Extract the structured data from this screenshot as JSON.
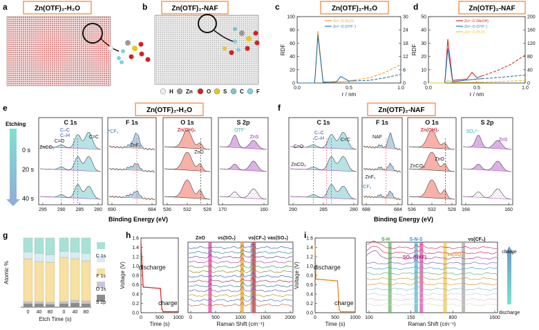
{
  "panels": {
    "a": {
      "letter": "a",
      "title": "Zn(OTF)₂-H₂O"
    },
    "b": {
      "letter": "b",
      "title": "Zn(OTF)₂-NAF"
    },
    "c": {
      "letter": "c",
      "title": "Zn(OTF)₂-H₂O"
    },
    "d": {
      "letter": "d",
      "title": "Zn(OTF)₂-NAF"
    },
    "e": {
      "letter": "e",
      "title": "Zn(OTF)₂-H₂O"
    },
    "f": {
      "letter": "f",
      "title": "Zn(OTF)₂-NAF"
    },
    "g": {
      "letter": "g"
    },
    "h": {
      "letter": "h"
    },
    "i": {
      "letter": "i"
    }
  },
  "atom_legend": [
    {
      "symbol": "H",
      "color": "#eeeeee"
    },
    {
      "symbol": "Zn",
      "color": "#9a9a9a"
    },
    {
      "symbol": "O",
      "color": "#d62020"
    },
    {
      "symbol": "S",
      "color": "#e6c820"
    },
    {
      "symbol": "C",
      "color": "#7fc4c8"
    },
    {
      "symbol": "F",
      "color": "#7fd0e0"
    }
  ],
  "chart_data": [
    {
      "id": "c",
      "type": "line",
      "title": "Zn(OTF)₂-H₂O",
      "xlabel": "r / nm",
      "ylabel": "RDF",
      "xlim": [
        0,
        1.0
      ],
      "ylim_left": [
        0,
        100
      ],
      "ylim_right": [
        0,
        30
      ],
      "x_ticks": [
        "0.0",
        "0.5",
        "1.0"
      ],
      "y_ticks_left": [
        "0",
        "20",
        "40",
        "60",
        "80",
        "100"
      ],
      "y_ticks_right": [
        "0",
        "6",
        "12",
        "18",
        "24",
        "30"
      ],
      "series": [
        {
          "name": "Zn²⁺-O (H₂O)",
          "color": "#f0a020",
          "x": [
            0,
            0.17,
            0.2,
            0.25,
            0.35,
            0.5,
            0.7,
            0.85,
            1.0
          ],
          "y": [
            0,
            0,
            78,
            2,
            1,
            3,
            8,
            16,
            28
          ]
        },
        {
          "name": "Zn²⁺-O (OTF⁻)",
          "color": "#1f77b4",
          "x": [
            0,
            0.17,
            0.2,
            0.25,
            0.38,
            0.42,
            0.5,
            0.7,
            0.85,
            1.0
          ],
          "y": [
            0,
            0,
            72,
            1,
            2,
            10,
            3,
            4,
            8,
            13
          ]
        }
      ]
    },
    {
      "id": "d",
      "type": "line",
      "title": "Zn(OTF)₂-NAF",
      "xlabel": "r / nm",
      "ylabel": "RDF",
      "xlim": [
        0,
        1.0
      ],
      "ylim_left": [
        0,
        50
      ],
      "ylim_right": [
        0,
        200
      ],
      "x_ticks": [
        "0.0",
        "0.5",
        "1.0"
      ],
      "y_ticks_left": [
        "0",
        "10",
        "20",
        "30",
        "40",
        "50"
      ],
      "y_ticks_right": [
        "0",
        "40",
        "80",
        "120",
        "160",
        "200"
      ],
      "series": [
        {
          "name": "Zn²⁺-O (MeOH)",
          "color": "#d62728",
          "x": [
            0,
            0.17,
            0.2,
            0.25,
            0.4,
            0.45,
            0.5,
            0.7,
            0.85,
            1.0
          ],
          "y": [
            0,
            0,
            33,
            2,
            3,
            8,
            4,
            9,
            14,
            21
          ]
        },
        {
          "name": "Zn²⁺-O (OTF⁻)",
          "color": "#1f77b4",
          "x": [
            0,
            0.17,
            0.2,
            0.25,
            0.5,
            0.7,
            0.85,
            1.0
          ],
          "y": [
            0,
            0,
            26,
            1,
            3,
            4,
            5,
            6
          ]
        },
        {
          "name": "Zn²⁺-O (H₂O)",
          "color": "#f0c020",
          "x": [
            0,
            0.17,
            0.2,
            0.25,
            0.5,
            0.7,
            1.0
          ],
          "y": [
            0,
            0,
            2,
            0.5,
            0.5,
            1,
            2
          ]
        }
      ]
    },
    {
      "id": "g",
      "type": "bar",
      "ylabel": "Atomic %",
      "xlabel": "Etch Time (s)",
      "groups": [
        {
          "name": "Zn(OTF)₂-H₂O",
          "categories": [
            "0",
            "40",
            "80"
          ]
        },
        {
          "name": "Zn(OTF)₂-NAF",
          "categories": [
            "0",
            "40",
            "80"
          ]
        }
      ],
      "legend": [
        "C 1s",
        "F 1s",
        "O 1s",
        "S 2p"
      ],
      "series": [
        {
          "name": "S 2p",
          "color": "#8c8c8c",
          "values": [
            5,
            5,
            4,
            5,
            6,
            5
          ]
        },
        {
          "name": "O 1s",
          "color": "#c8c8d4",
          "values": [
            3,
            3,
            3,
            3,
            4,
            4
          ]
        },
        {
          "name": "F 1s",
          "color": "#f7e0a0",
          "values": [
            62,
            58,
            58,
            64,
            60,
            58
          ]
        },
        {
          "name": "",
          "color": "#d8ecf2",
          "values": [
            10,
            12,
            11,
            9,
            10,
            11
          ]
        },
        {
          "name": "C 1s",
          "color": "#a6e3d6",
          "values": [
            20,
            22,
            24,
            19,
            20,
            22
          ]
        }
      ]
    },
    {
      "id": "h_voltage",
      "type": "line",
      "xlabel": "Time (s)",
      "ylabel": "Voltage (V)",
      "xlim": [
        0,
        1000
      ],
      "ylim": [
        0,
        1.6
      ],
      "x_ticks": [
        "0",
        "500",
        "1000"
      ],
      "y_ticks": [
        "0.0",
        "0.2",
        "0.4",
        "0.6",
        "0.8",
        "1.0",
        "1.2",
        "1.4",
        "1.6"
      ],
      "labels": [
        "discharge",
        "charge"
      ],
      "series": [
        {
          "name": "voltage",
          "color": "#e41a1c",
          "x": [
            0,
            60,
            520,
            560,
            600,
            1000
          ],
          "y": [
            1.5,
            0.55,
            0.52,
            0.08,
            0.02,
            0.02
          ]
        }
      ]
    },
    {
      "id": "h_raman",
      "type": "line",
      "xlabel": "Raman Shift (cm⁻¹)",
      "xlim": [
        0,
        2000
      ],
      "x_ticks": [
        "0",
        "500",
        "1000",
        "1500",
        "2000"
      ],
      "annotations": [
        "ZnO",
        "νs(SO₂)",
        "νs(CF₃)",
        "νas(SO₃)"
      ],
      "bands": [
        {
          "label": "ZnO",
          "x": 420,
          "color": "#e040a0"
        },
        {
          "label": "νs(SO₂)",
          "x": 1030,
          "color": "#f0a020"
        },
        {
          "label": "νs(CF₃)",
          "x": 1225,
          "color": "#a0a0a0"
        },
        {
          "label": "νas(SO₃)",
          "x": 1260,
          "color": "#d04040"
        }
      ]
    },
    {
      "id": "i_voltage",
      "type": "line",
      "xlabel": "Time (s)",
      "ylabel": "Voltage (V)",
      "xlim": [
        0,
        1000
      ],
      "ylim": [
        0,
        1.6
      ],
      "x_ticks": [
        "0",
        "500",
        "1000"
      ],
      "y_ticks": [
        "0.0",
        "0.2",
        "0.4",
        "0.6",
        "0.8",
        "1.0",
        "1.2",
        "1.4",
        "1.6"
      ],
      "labels": [
        "discharge",
        "charge"
      ],
      "series": [
        {
          "name": "voltage",
          "color": "#f08000",
          "x": [
            0,
            20,
            560,
            600,
            640,
            1000
          ],
          "y": [
            1.45,
            0.72,
            0.68,
            0.06,
            0.02,
            0.02
          ]
        }
      ]
    },
    {
      "id": "i_raman",
      "type": "line",
      "xlabel": "Raman Shift (cm⁻¹)",
      "xlim": [
        80,
        2000
      ],
      "x_ticks": [
        "100",
        "150",
        "800",
        "1600"
      ],
      "annotations": [
        "S-H",
        "S-N-S",
        "SO₂ (NAF)",
        "νs(SO₂)",
        "νs(CF₃)"
      ],
      "arrow_labels": [
        "charge",
        "discharge"
      ]
    }
  ],
  "xps_e": {
    "etching_label": "Etching",
    "times": [
      "0 s",
      "20 s",
      "40 s"
    ],
    "sections": [
      {
        "title": "C 1s",
        "ticks": [
          "295",
          "290",
          "285",
          "280"
        ]
      },
      {
        "title": "F 1s",
        "ticks": [
          "690",
          "684"
        ]
      },
      {
        "title": "O 1s",
        "ticks": [
          "536",
          "532",
          "528"
        ]
      },
      {
        "title": "S 2p",
        "ticks": [
          "170",
          "160"
        ]
      }
    ],
    "annotations": [
      "C–C",
      "C–H",
      "C=C",
      "ZnCO₃",
      "C=O",
      "*CF₃",
      "ZnF₂",
      "Zn(OH)₂",
      "ZnO",
      "OTF⁻",
      "ZnS"
    ],
    "xlabel": "Binding Energy (eV)"
  },
  "xps_f": {
    "sections": [
      {
        "title": "C 1s",
        "ticks": [
          "290",
          "285",
          "280"
        ]
      },
      {
        "title": "F 1s",
        "ticks": [
          "688",
          "684"
        ]
      },
      {
        "title": "O 1s",
        "ticks": [
          "536",
          "532",
          "528"
        ]
      },
      {
        "title": "S 2p",
        "ticks": [
          "168",
          "160"
        ]
      }
    ],
    "annotations": [
      "C–C",
      "C–H",
      "C=C",
      "C=O",
      "ZnCO₃",
      "NAF",
      "ZnF₂",
      "*CF₃",
      "Zn(OH)₂",
      "ZnCO₃",
      "ZnO",
      "SO₃²⁻",
      "ZnS"
    ],
    "xlabel": "Binding Energy (eV)"
  },
  "colors": {
    "title_border": "#f08030",
    "cyan": "#2bb0b8",
    "purple": "#9b20b8",
    "red": "#e0303a",
    "salmon": "#f59080"
  }
}
